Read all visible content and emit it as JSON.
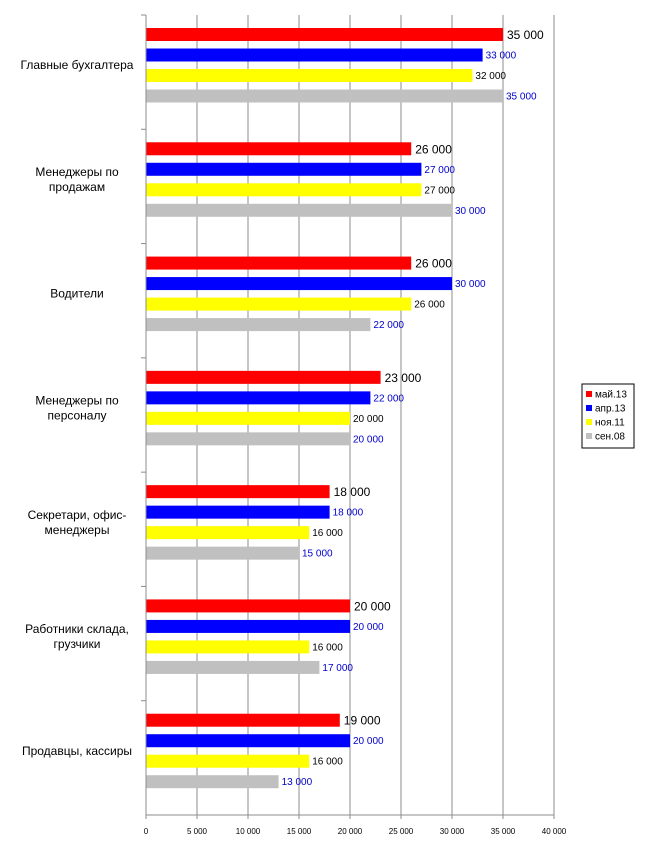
{
  "chart_data": {
    "type": "bar",
    "orientation": "horizontal",
    "categories": [
      [
        "Главные бухгалтера"
      ],
      [
        "Менеджеры по",
        "продажам"
      ],
      [
        "Водители"
      ],
      [
        "Менеджеры по",
        "персоналу"
      ],
      [
        "Секретари, офис-",
        "менеджеры"
      ],
      [
        "Работники склада,",
        "грузчики"
      ],
      [
        "Продавцы, кассиры"
      ]
    ],
    "series": [
      {
        "name": "май.13",
        "color": "#ff0000",
        "label_color": "#000000",
        "values": [
          35000,
          26000,
          26000,
          23000,
          18000,
          20000,
          19000
        ],
        "labels": [
          "35 000",
          "26 000",
          "26 000",
          "23 000",
          "18 000",
          "20 000",
          "19 000"
        ]
      },
      {
        "name": "апр.13",
        "color": "#0000ff",
        "label_color": "#0000cc",
        "values": [
          33000,
          27000,
          30000,
          22000,
          18000,
          20000,
          20000
        ],
        "labels": [
          "33 000",
          "27 000",
          "30 000",
          "22 000",
          "18 000",
          "20 000",
          "20 000"
        ]
      },
      {
        "name": "ноя.11",
        "color": "#ffff00",
        "label_color": "#000000",
        "values": [
          32000,
          27000,
          26000,
          20000,
          16000,
          16000,
          16000
        ],
        "labels": [
          "32 000",
          "27 000",
          "26 000",
          "20 000",
          "16 000",
          "16 000",
          "16 000"
        ]
      },
      {
        "name": "сен.08",
        "color": "#c0c0c0",
        "label_color": "#0000cc",
        "values": [
          35000,
          30000,
          22000,
          20000,
          15000,
          17000,
          13000
        ],
        "labels": [
          "35 000",
          "30 000",
          "22 000",
          "20 000",
          "15 000",
          "17 000",
          "13 000"
        ]
      }
    ],
    "x_ticks": [
      "0",
      "5 000",
      "10 000",
      "15 000",
      "20 000",
      "25 000",
      "30 000",
      "35 000",
      "40 000"
    ],
    "xlim": [
      0,
      40000
    ],
    "grid": true,
    "legend_position": "right"
  }
}
